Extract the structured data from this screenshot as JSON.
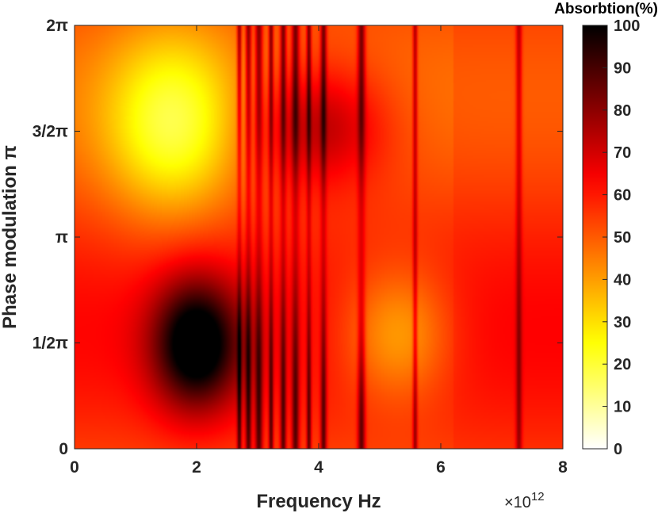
{
  "chart_data": {
    "type": "heatmap",
    "title": "",
    "xlabel": "Frequency Hz",
    "ylabel": "Phase modulation π",
    "x_exponent_label": "×10",
    "x_exponent_power": "12",
    "xlim": [
      0,
      8
    ],
    "ylim": [
      0,
      6.2832
    ],
    "x_ticks": [
      {
        "value": 0,
        "label": "0"
      },
      {
        "value": 2,
        "label": "2"
      },
      {
        "value": 4,
        "label": "4"
      },
      {
        "value": 6,
        "label": "6"
      },
      {
        "value": 8,
        "label": "8"
      }
    ],
    "y_ticks": [
      {
        "value": 0,
        "label": "0"
      },
      {
        "value": 1.5708,
        "label": "1/2π"
      },
      {
        "value": 3.1416,
        "label": "π"
      },
      {
        "value": 4.7124,
        "label": "3/2π"
      },
      {
        "value": 6.2832,
        "label": "2π"
      }
    ],
    "colorbar": {
      "title": "Absorbtion(%)",
      "range": [
        0,
        100
      ],
      "colormap": "hot-reversed",
      "ticks": [
        {
          "value": 0,
          "label": "0"
        },
        {
          "value": 10,
          "label": "10"
        },
        {
          "value": 20,
          "label": "20"
        },
        {
          "value": 30,
          "label": "30"
        },
        {
          "value": 40,
          "label": "40"
        },
        {
          "value": 50,
          "label": "50"
        },
        {
          "value": 60,
          "label": "60"
        },
        {
          "value": 70,
          "label": "70"
        },
        {
          "value": 80,
          "label": "80"
        },
        {
          "value": 90,
          "label": "90"
        },
        {
          "value": 100,
          "label": "100"
        }
      ]
    },
    "blobs": [
      {
        "x": 1.6,
        "y": 4.8,
        "sx": 1.1,
        "sy": 1.4,
        "amp": -30
      },
      {
        "x": 2.0,
        "y": 1.55,
        "sx": 0.7,
        "sy": 0.95,
        "amp": 50
      },
      {
        "x": 4.0,
        "y": 4.8,
        "sx": 1.1,
        "sy": 0.9,
        "amp": 25
      },
      {
        "x": 5.3,
        "y": 1.7,
        "sx": 0.9,
        "sy": 1.0,
        "amp": -22
      }
    ],
    "resonance_lines": [
      2.7,
      2.85,
      3.02,
      3.22,
      3.42,
      3.62,
      3.84,
      4.08,
      4.7,
      5.58,
      7.28
    ]
  }
}
